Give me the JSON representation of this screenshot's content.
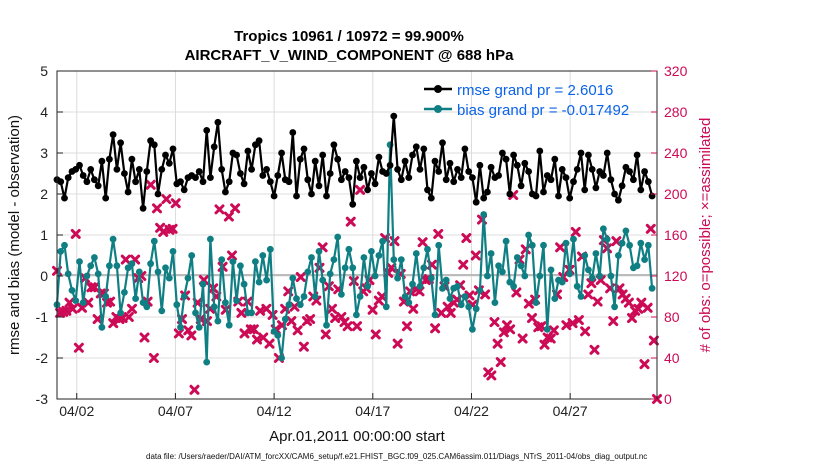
{
  "chart_data": {
    "type": "line",
    "title_line1": "Tropics 10961 / 10972 = 99.900%",
    "title_line2": "AIRCRAFT_V_WIND_COMPONENT @ 688 hPa",
    "xlabel": "Apr.01,2011 00:00:00 start",
    "ylabel": "rmse and bias (model - observation)",
    "ylabel_right": "# of obs: o=possible; ×=assimilated",
    "xlim": [
      1,
      31.4
    ],
    "ylim": [
      -3,
      5
    ],
    "ylim_right": [
      0,
      320
    ],
    "x_ticks": [
      {
        "label": "04/02",
        "x": 2
      },
      {
        "label": "04/07",
        "x": 7
      },
      {
        "label": "04/12",
        "x": 12
      },
      {
        "label": "04/17",
        "x": 17
      },
      {
        "label": "04/22",
        "x": 22
      },
      {
        "label": "04/27",
        "x": 27
      }
    ],
    "y_ticks": [
      "-3",
      "-2",
      "-1",
      "0",
      "1",
      "2",
      "3",
      "4",
      "5"
    ],
    "y_ticks_right": [
      "0",
      "40",
      "80",
      "120",
      "160",
      "200",
      "240",
      "280",
      "320"
    ],
    "footnote": "data file: /Users/raeder/DAI/ATM_forcXX/CAM6_setup/f.e21.FHIST_BGC.f09_025.CAM6assim.011/Diags_NTrS_2011-04/obs_diag_output.nc",
    "series": [
      {
        "name": "rmse grand pr = 2.6016",
        "color": "#000000",
        "marker": "circle",
        "values": [
          2.35,
          2.3,
          1.9,
          2.4,
          2.55,
          2.6,
          2.7,
          2.45,
          2.3,
          2.6,
          2.35,
          2.2,
          2.8,
          1.9,
          2.85,
          3.45,
          2.6,
          3.25,
          2.5,
          2.05,
          2.85,
          2.3,
          2.6,
          1.65,
          2.55,
          3.3,
          3.2,
          2.0,
          2.6,
          2.95,
          2.75,
          3.1,
          2.25,
          2.3,
          2.1,
          2.4,
          2.45,
          2.4,
          2.55,
          2.3,
          3.55,
          2.4,
          3.15,
          3.75,
          2.6,
          2.05,
          2.3,
          3.0,
          2.95,
          2.5,
          2.25,
          3.05,
          2.6,
          3.2,
          3.3,
          2.45,
          2.6,
          2.3,
          1.95,
          2.45,
          3.0,
          2.35,
          2.3,
          3.5,
          1.95,
          2.85,
          3.1,
          2.35,
          2.0,
          2.8,
          2.2,
          2.95,
          1.95,
          2.5,
          3.2,
          2.85,
          2.35,
          2.55,
          2.4,
          1.75,
          2.8,
          2.4,
          2.65,
          2.1,
          2.5,
          2.25,
          2.9,
          2.55,
          2.5,
          2.7,
          3.9,
          2.6,
          2.35,
          2.8,
          2.4,
          2.95,
          3.15,
          2.6,
          3.1,
          2.1,
          1.9,
          2.8,
          2.55,
          3.25,
          2.35,
          2.75,
          2.3,
          2.6,
          2.4,
          3.1,
          2.55,
          2.4,
          1.8,
          2.7,
          1.9,
          2.05,
          2.65,
          2.4,
          2.45,
          3.0,
          2.85,
          2.0,
          2.95,
          2.7,
          2.2,
          2.75,
          2.55,
          2.0,
          1.95,
          3.05,
          2.05,
          2.45,
          2.35,
          2.85,
          1.95,
          2.6,
          2.4,
          1.9,
          2.3,
          2.6,
          3.0,
          2.1,
          2.95,
          2.6,
          2.15,
          2.55,
          2.45,
          3.0,
          2.35,
          2.0,
          1.85,
          2.2,
          2.65,
          2.55,
          2.35,
          2.95,
          2.1,
          2.55,
          2.3,
          1.95
        ]
      },
      {
        "name": "bias grand pr = -0.017492",
        "color": "#0f7f84",
        "marker": "circle",
        "values": [
          -0.7,
          0.6,
          0.75,
          0.05,
          -0.35,
          -0.6,
          0.35,
          -0.65,
          0.0,
          0.25,
          0.45,
          0.05,
          -1.25,
          -0.5,
          0.25,
          0.9,
          0.25,
          -0.9,
          -0.4,
          0.2,
          0.3,
          -0.55,
          0.1,
          -0.65,
          -0.75,
          0.3,
          0.85,
          0.1,
          -0.85,
          0.2,
          -0.05,
          0.6,
          -0.7,
          -1.25,
          -0.5,
          -0.05,
          0.5,
          -0.9,
          -1.25,
          -0.2,
          -2.1,
          0.9,
          -0.75,
          -1.1,
          0.4,
          -0.65,
          -1.2,
          0.35,
          -0.6,
          0.25,
          -0.2,
          -0.9,
          -0.9,
          0.35,
          -0.15,
          0.5,
          -0.1,
          0.65,
          -1.35,
          -1.45,
          -2.0,
          -1.05,
          -0.7,
          -0.05,
          -0.55,
          -0.7,
          -0.5,
          0.1,
          0.45,
          -0.5,
          0.6,
          -0.1,
          -1.2,
          0.05,
          0.4,
          0.95,
          -0.45,
          0.2,
          0.65,
          0.2,
          -0.95,
          -0.5,
          0.45,
          -0.25,
          0.6,
          0.0,
          0.5,
          0.85,
          -0.75,
          3.2,
          0.4,
          -0.05,
          0.4,
          -0.5,
          -0.65,
          -0.2,
          0.55,
          -0.25,
          0.2,
          0.65,
          -0.05,
          -0.95,
          0.75,
          -0.3,
          -0.1,
          -0.55,
          -0.3,
          -0.25,
          -0.7,
          -0.5,
          -0.75,
          -1.3,
          -0.8,
          -0.35,
          1.5,
          0.0,
          0.55,
          -0.65,
          0.25,
          0.1,
          0.85,
          -0.15,
          -0.25,
          0.45,
          0.25,
          0.0,
          1.0,
          0.75,
          -0.65,
          0.0,
          0.75,
          -1.3,
          0.15,
          -0.55,
          -0.1,
          -0.15,
          0.8,
          0.05,
          0.9,
          -0.25,
          -0.5,
          0.5,
          0.15,
          -0.05,
          0.55,
          0.0,
          1.15,
          0.9,
          0.0,
          -0.75,
          0.5,
          0.8,
          1.1,
          0.75,
          0.2,
          0.25,
          0.8,
          0.4,
          0.75,
          -0.3
        ]
      },
      {
        "name": "# of obs assimilated",
        "color": "#cc0a55",
        "marker": "x",
        "values": [
          125,
          84,
          85,
          86,
          94,
          88,
          161,
          50,
          89,
          118,
          94,
          109,
          109,
          78,
          103,
          103,
          94,
          95,
          74,
          80,
          78,
          79,
          136,
          80,
          88,
          136,
          118,
          120,
          60,
          95,
          209,
          40,
          186,
          167,
          163,
          195,
          165,
          166,
          191,
          64,
          78,
          101,
          67,
          62,
          9,
          94,
          78,
          116,
          76,
          88,
          108,
          100,
          185,
          129,
          87,
          178,
          140,
          186,
          95,
          84,
          64,
          95,
          68,
          68,
          58,
          86,
          60,
          88,
          54,
          82,
          68,
          40,
          72,
          88,
          105,
          76,
          90,
          67,
          119,
          51,
          76,
          78,
          100,
          96,
          128,
          148,
          63,
          110,
          88,
          79,
          107,
          80,
          75,
          71,
          173,
          115,
          71,
          204,
          105,
          108,
          116,
          87,
          63,
          96,
          100,
          157,
          123,
          128,
          154,
          54,
          122,
          95,
          71,
          105,
          88,
          107,
          105,
          153,
          116,
          117,
          131,
          69,
          161,
          84,
          110,
          90,
          84,
          94,
          97,
          111,
          131,
          157,
          101,
          92,
          140,
          106,
          175,
          102,
          26,
          23,
          75,
          54,
          36,
          65,
          72,
          68,
          199,
          104,
          136,
          59,
          146,
          93,
          79,
          97,
          70,
          71,
          53,
          60,
          59,
          67,
          102,
          148,
          119,
          72,
          126,
          74,
          163,
          77,
          139,
          66,
          102,
          113,
          48,
          95,
          116,
          155,
          147,
          108,
          76,
          154,
          108,
          102,
          98,
          94,
          79,
          86,
          88,
          94,
          34,
          89,
          166,
          57,
          0
        ]
      }
    ]
  }
}
